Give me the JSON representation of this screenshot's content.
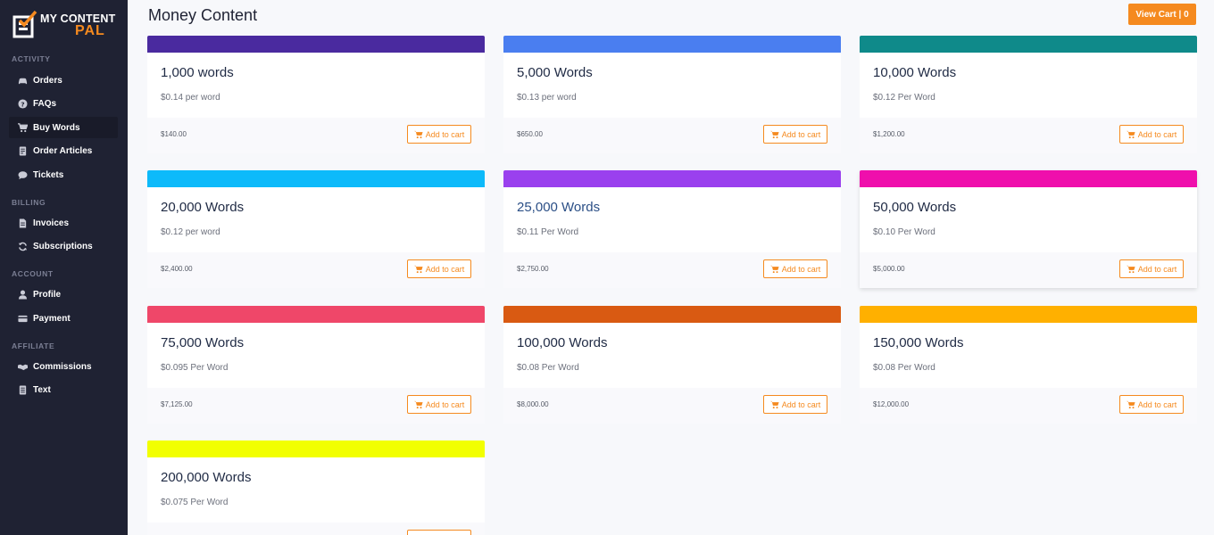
{
  "brand": {
    "line1": "MY CONTENT",
    "line2": "PAL"
  },
  "sidebar": {
    "sections": [
      {
        "label": "ACTIVITY",
        "items": [
          {
            "label": "Orders",
            "icon": "car-icon"
          },
          {
            "label": "FAQs",
            "icon": "question-circle-icon"
          },
          {
            "label": "Buy Words",
            "icon": "cart-icon",
            "active": true
          },
          {
            "label": "Order Articles",
            "icon": "document-icon"
          },
          {
            "label": "Tickets",
            "icon": "chat-bubble-icon"
          }
        ]
      },
      {
        "label": "BILLING",
        "items": [
          {
            "label": "Invoices",
            "icon": "file-icon"
          },
          {
            "label": "Subscriptions",
            "icon": "refresh-icon"
          }
        ]
      },
      {
        "label": "ACCOUNT",
        "items": [
          {
            "label": "Profile",
            "icon": "user-icon"
          },
          {
            "label": "Payment",
            "icon": "credit-card-icon"
          }
        ]
      },
      {
        "label": "AFFILIATE",
        "items": [
          {
            "label": "Commissions",
            "icon": "handshake-icon"
          },
          {
            "label": "Text",
            "icon": "text-file-icon"
          }
        ]
      }
    ]
  },
  "header": {
    "title": "Money Content",
    "cart_label": "View Cart | 0"
  },
  "add_label": "Add to cart",
  "products": [
    {
      "title": "1,000 words",
      "rate": "$0.14 per word",
      "price": "$140.00",
      "color": "#4a2a9f"
    },
    {
      "title": "5,000 Words",
      "rate": "$0.13 per word",
      "price": "$650.00",
      "color": "#4a7ef0"
    },
    {
      "title": "10,000 Words",
      "rate": "$0.12 Per Word",
      "price": "$1,200.00",
      "color": "#0f8a8a"
    },
    {
      "title": "20,000 Words",
      "rate": "$0.12 per word",
      "price": "$2,400.00",
      "color": "#0dbafa"
    },
    {
      "title": "25,000 Words",
      "rate": "$0.11 Per Word",
      "price": "$2,750.00",
      "color": "#9a40ee"
    },
    {
      "title": "50,000 Words",
      "rate": "$0.10 Per Word",
      "price": "$5,000.00",
      "color": "#ef0fac"
    },
    {
      "title": "75,000 Words",
      "rate": "$0.095 Per Word",
      "price": "$7,125.00",
      "color": "#ef4769"
    },
    {
      "title": "100,000 Words",
      "rate": "$0.08 Per Word",
      "price": "$8,000.00",
      "color": "#d95a12"
    },
    {
      "title": "150,000 Words",
      "rate": "$0.08 Per Word",
      "price": "$12,000.00",
      "color": "#ffb000"
    },
    {
      "title": "200,000 Words",
      "rate": "$0.075 Per Word",
      "price": "",
      "color": "#f2ff00"
    }
  ],
  "colors": {
    "sidebar_bg": "#1f2233",
    "accent": "#f58a1f"
  }
}
